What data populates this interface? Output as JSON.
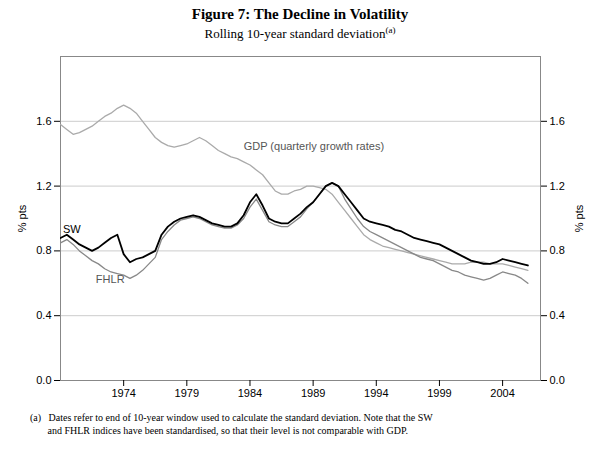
{
  "chart_data": {
    "type": "line",
    "title": "Figure 7: The Decline in Volatility",
    "subtitle": "Rolling 10-year standard deviation",
    "subtitle_note": "(a)",
    "footnote": "(a)   Dates refer to end of 10-year window used to calculate the standard deviation. Note that the SW\n       and FHLR indices have been standardised, so that their level is not comparable with GDP.",
    "ylabel": "% pts",
    "y2label": "% pts",
    "xlim": [
      1969.0,
      2007.0
    ],
    "xticks": [
      1974,
      1979,
      1984,
      1989,
      1994,
      1999,
      2004
    ],
    "ylim": [
      0.0,
      2.0
    ],
    "yticks": [
      {
        "value": 0.0,
        "label": "0.0"
      },
      0.4,
      0.8,
      1.2,
      1.6
    ],
    "y2lim": [
      0.0,
      2.0
    ],
    "y2ticks": [
      {
        "value": 0.0,
        "label": "0.0"
      },
      0.4,
      0.8,
      1.2,
      1.6
    ],
    "grid": true,
    "x": [
      1969.0,
      1969.5,
      1970.0,
      1970.5,
      1971.0,
      1971.5,
      1972.0,
      1972.5,
      1973.0,
      1973.5,
      1974.0,
      1974.5,
      1975.0,
      1975.5,
      1976.0,
      1976.5,
      1977.0,
      1977.5,
      1978.0,
      1978.5,
      1979.0,
      1979.5,
      1980.0,
      1980.5,
      1981.0,
      1981.5,
      1982.0,
      1982.5,
      1983.0,
      1983.5,
      1984.0,
      1984.5,
      1985.0,
      1985.5,
      1986.0,
      1986.5,
      1987.0,
      1987.5,
      1988.0,
      1988.5,
      1989.0,
      1989.5,
      1990.0,
      1990.5,
      1991.0,
      1991.5,
      1992.0,
      1992.5,
      1993.0,
      1993.5,
      1994.0,
      1994.5,
      1995.0,
      1995.5,
      1996.0,
      1996.5,
      1997.0,
      1997.5,
      1998.0,
      1998.5,
      1999.0,
      1999.5,
      2000.0,
      2000.5,
      2001.0,
      2001.5,
      2002.0,
      2002.5,
      2003.0,
      2003.5,
      2004.0,
      2004.5,
      2005.0,
      2005.5,
      2006.0
    ],
    "series": [
      {
        "name": "GDP (quarterly growth rates)",
        "color": "#aaaaaa",
        "annotation": {
          "x": 1983.5,
          "y": 1.42,
          "color": "#555555"
        },
        "values": [
          1.58,
          1.55,
          1.52,
          1.53,
          1.55,
          1.57,
          1.6,
          1.63,
          1.65,
          1.68,
          1.7,
          1.68,
          1.65,
          1.6,
          1.55,
          1.5,
          1.47,
          1.45,
          1.44,
          1.45,
          1.46,
          1.48,
          1.5,
          1.48,
          1.45,
          1.42,
          1.4,
          1.38,
          1.37,
          1.35,
          1.33,
          1.3,
          1.27,
          1.22,
          1.17,
          1.15,
          1.15,
          1.17,
          1.18,
          1.2,
          1.2,
          1.19,
          1.18,
          1.15,
          1.1,
          1.05,
          1.0,
          0.95,
          0.9,
          0.87,
          0.85,
          0.83,
          0.82,
          0.81,
          0.8,
          0.79,
          0.78,
          0.77,
          0.76,
          0.75,
          0.74,
          0.73,
          0.72,
          0.72,
          0.72,
          0.73,
          0.73,
          0.73,
          0.72,
          0.72,
          0.72,
          0.71,
          0.7,
          0.69,
          0.68
        ]
      },
      {
        "name": "FHLR",
        "color": "#888888",
        "annotation": {
          "x": 1971.8,
          "y": 0.6,
          "color": "#555555"
        },
        "values": [
          0.85,
          0.87,
          0.84,
          0.8,
          0.77,
          0.74,
          0.72,
          0.69,
          0.67,
          0.66,
          0.65,
          0.63,
          0.65,
          0.68,
          0.72,
          0.76,
          0.87,
          0.92,
          0.96,
          0.99,
          1.0,
          1.01,
          1.0,
          0.98,
          0.96,
          0.95,
          0.94,
          0.94,
          0.96,
          1.0,
          1.07,
          1.12,
          1.05,
          0.98,
          0.96,
          0.95,
          0.95,
          0.98,
          1.01,
          1.06,
          1.1,
          1.15,
          1.2,
          1.22,
          1.2,
          1.12,
          1.06,
          1.0,
          0.95,
          0.92,
          0.9,
          0.88,
          0.86,
          0.84,
          0.82,
          0.8,
          0.78,
          0.76,
          0.75,
          0.74,
          0.72,
          0.7,
          0.68,
          0.67,
          0.65,
          0.64,
          0.63,
          0.62,
          0.63,
          0.65,
          0.67,
          0.66,
          0.65,
          0.63,
          0.6
        ]
      },
      {
        "name": "SW",
        "color": "#000000",
        "annotation": {
          "x": 1969.2,
          "y": 0.91,
          "color": "#000000"
        },
        "values": [
          0.88,
          0.9,
          0.87,
          0.84,
          0.82,
          0.8,
          0.82,
          0.85,
          0.88,
          0.9,
          0.78,
          0.73,
          0.75,
          0.76,
          0.78,
          0.8,
          0.9,
          0.95,
          0.98,
          1.0,
          1.01,
          1.02,
          1.01,
          0.99,
          0.97,
          0.96,
          0.95,
          0.95,
          0.97,
          1.02,
          1.1,
          1.15,
          1.08,
          1.0,
          0.98,
          0.97,
          0.97,
          1.0,
          1.03,
          1.07,
          1.1,
          1.15,
          1.2,
          1.22,
          1.2,
          1.15,
          1.1,
          1.05,
          1.0,
          0.98,
          0.97,
          0.96,
          0.95,
          0.93,
          0.92,
          0.9,
          0.88,
          0.87,
          0.86,
          0.85,
          0.84,
          0.82,
          0.8,
          0.78,
          0.76,
          0.74,
          0.73,
          0.72,
          0.72,
          0.73,
          0.75,
          0.74,
          0.73,
          0.72,
          0.71
        ]
      }
    ]
  }
}
